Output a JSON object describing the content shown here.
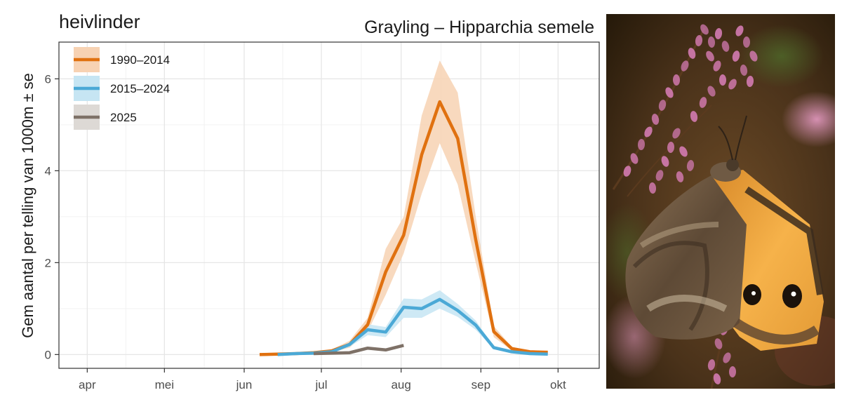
{
  "chart_data": {
    "type": "line",
    "title_left": "heivlinder",
    "title_right": "Grayling – Hipparchia semele",
    "xlabel": "",
    "ylabel": "Gem aantal per telling van 1000m ± se",
    "x_unit": "day of year",
    "x_ticks": [
      {
        "label": "apr",
        "day": 91
      },
      {
        "label": "mei",
        "day": 121
      },
      {
        "label": "jun",
        "day": 152
      },
      {
        "label": "jul",
        "day": 182
      },
      {
        "label": "aug",
        "day": 213
      },
      {
        "label": "sep",
        "day": 244
      },
      {
        "label": "okt",
        "day": 274
      }
    ],
    "xlim": [
      80,
      290
    ],
    "ylim": [
      -0.3,
      6.8
    ],
    "y_ticks": [
      0,
      2,
      4,
      6
    ],
    "grid": true,
    "legend_position": "top-left",
    "series": [
      {
        "name": "1990–2014",
        "color": "#e07110",
        "band_color": "#f7d2b3",
        "x": [
          158,
          165,
          172,
          179,
          186,
          193,
          200,
          207,
          214,
          221,
          228,
          235,
          242,
          249,
          256,
          263,
          270
        ],
        "y": [
          0.0,
          0.01,
          0.02,
          0.04,
          0.08,
          0.22,
          0.65,
          1.8,
          2.6,
          4.35,
          5.5,
          4.7,
          2.5,
          0.5,
          0.13,
          0.06,
          0.05
        ],
        "lower": [
          0.0,
          0.0,
          0.01,
          0.03,
          0.05,
          0.15,
          0.5,
          1.3,
          2.2,
          3.5,
          4.6,
          3.7,
          2.0,
          0.38,
          0.09,
          0.04,
          0.03
        ],
        "upper": [
          0.0,
          0.02,
          0.03,
          0.06,
          0.11,
          0.3,
          0.8,
          2.3,
          3.0,
          5.2,
          6.4,
          5.7,
          3.0,
          0.62,
          0.17,
          0.08,
          0.07
        ]
      },
      {
        "name": "2015–2024",
        "color": "#4ba9d6",
        "band_color": "#c6e5f3",
        "x": [
          165,
          172,
          179,
          186,
          193,
          200,
          207,
          214,
          221,
          228,
          235,
          242,
          249,
          256,
          263,
          270
        ],
        "y": [
          0.0,
          0.02,
          0.03,
          0.06,
          0.22,
          0.54,
          0.49,
          1.03,
          1.0,
          1.2,
          0.96,
          0.64,
          0.15,
          0.06,
          0.02,
          0.01
        ],
        "lower": [
          0.0,
          0.01,
          0.02,
          0.04,
          0.17,
          0.42,
          0.38,
          0.8,
          0.8,
          1.0,
          0.82,
          0.54,
          0.12,
          0.04,
          0.01,
          0.0
        ],
        "upper": [
          0.0,
          0.03,
          0.04,
          0.08,
          0.27,
          0.66,
          0.6,
          1.22,
          1.2,
          1.4,
          1.1,
          0.74,
          0.18,
          0.08,
          0.03,
          0.02
        ]
      },
      {
        "name": "2025",
        "color": "#7e7167",
        "band_color": "#ddd9d5",
        "x": [
          179,
          186,
          193,
          200,
          207,
          214
        ],
        "y": [
          0.02,
          0.03,
          0.04,
          0.14,
          0.1,
          0.2
        ],
        "lower": [
          0.02,
          0.03,
          0.04,
          0.14,
          0.1,
          0.2
        ],
        "upper": [
          0.02,
          0.03,
          0.04,
          0.14,
          0.1,
          0.2
        ]
      }
    ]
  },
  "photo": {
    "subject": "Grayling butterfly on heather",
    "colors": {
      "bg_dark": "#2d2113",
      "bg_mid": "#5a3e22",
      "heather": "#d27ab0",
      "wing_brown": "#6b5640",
      "wing_light": "#c9b79c",
      "wing_orange": "#f2a93b"
    }
  }
}
